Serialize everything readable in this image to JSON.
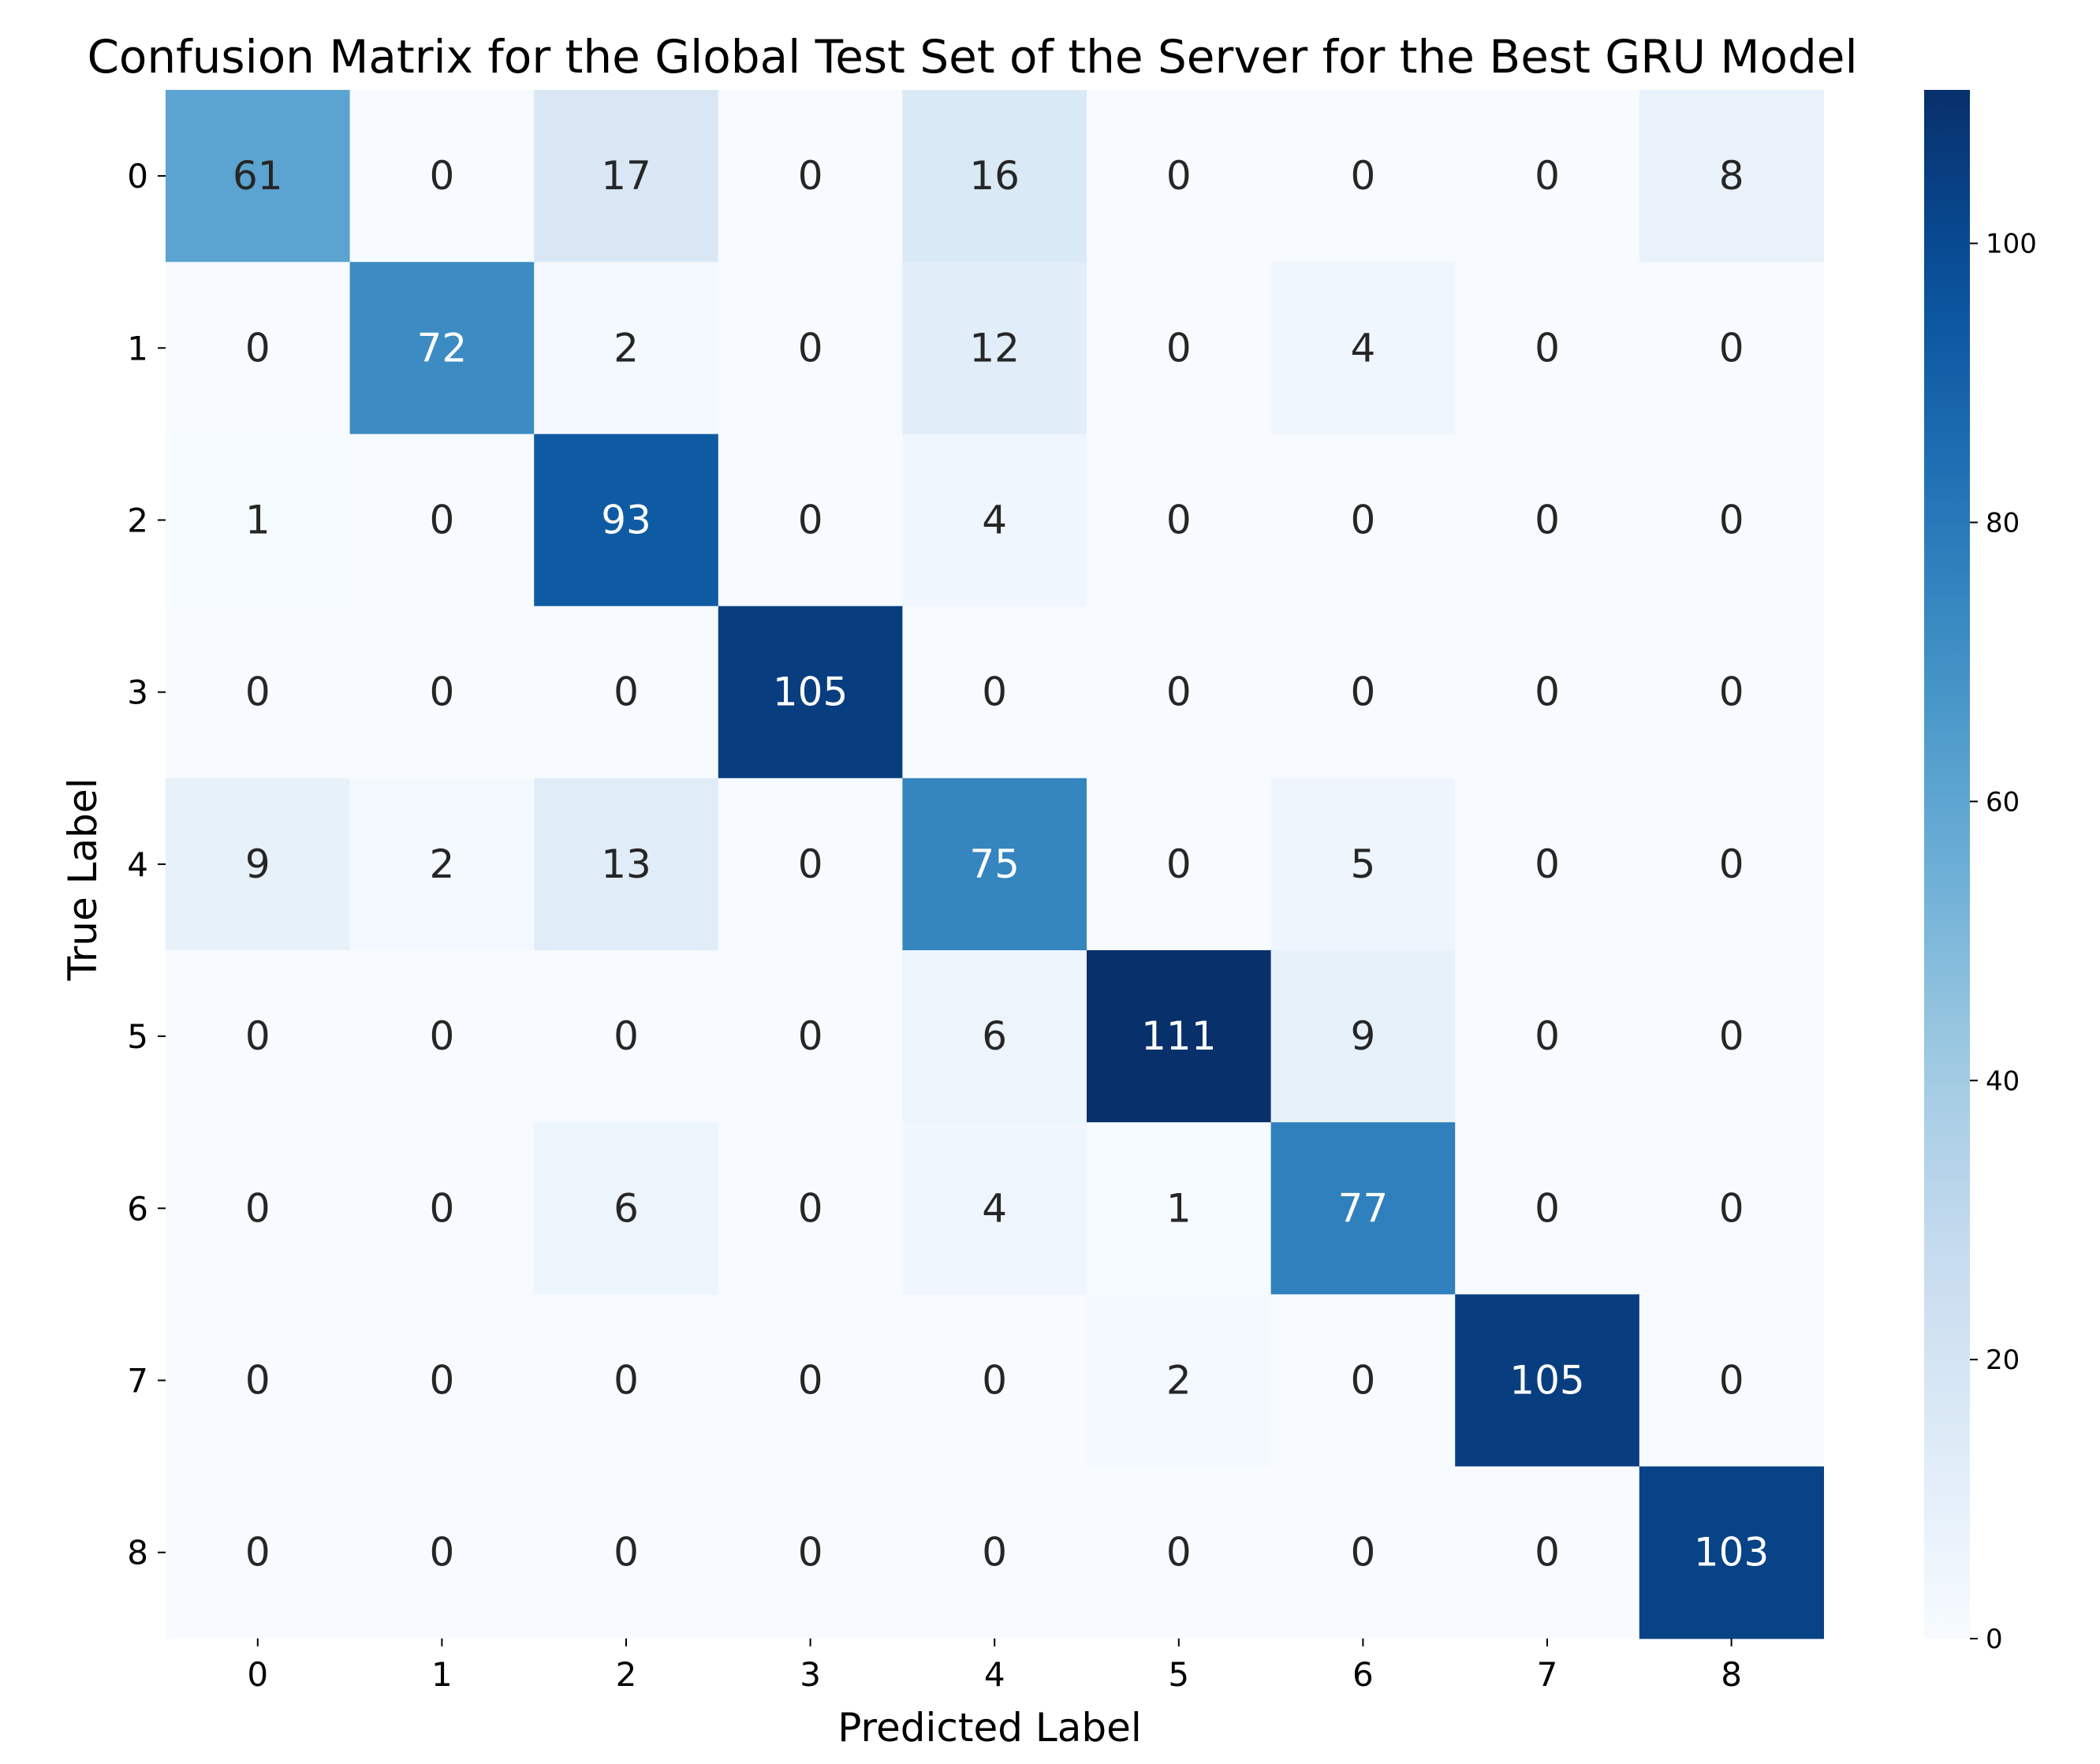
{
  "chart_data": {
    "type": "heatmap",
    "title": "Confusion Matrix for the Global Test Set of the Server for the Best GRU Model",
    "xlabel": "Predicted Label",
    "ylabel": "True Label",
    "x_categories": [
      "0",
      "1",
      "2",
      "3",
      "4",
      "5",
      "6",
      "7",
      "8"
    ],
    "y_categories": [
      "0",
      "1",
      "2",
      "3",
      "4",
      "5",
      "6",
      "7",
      "8"
    ],
    "values": [
      [
        61,
        0,
        17,
        0,
        16,
        0,
        0,
        0,
        8
      ],
      [
        0,
        72,
        2,
        0,
        12,
        0,
        4,
        0,
        0
      ],
      [
        1,
        0,
        93,
        0,
        4,
        0,
        0,
        0,
        0
      ],
      [
        0,
        0,
        0,
        105,
        0,
        0,
        0,
        0,
        0
      ],
      [
        9,
        2,
        13,
        0,
        75,
        0,
        5,
        0,
        0
      ],
      [
        0,
        0,
        0,
        0,
        6,
        111,
        9,
        0,
        0
      ],
      [
        0,
        0,
        6,
        0,
        4,
        1,
        77,
        0,
        0
      ],
      [
        0,
        0,
        0,
        0,
        0,
        2,
        0,
        105,
        0
      ],
      [
        0,
        0,
        0,
        0,
        0,
        0,
        0,
        0,
        103
      ]
    ],
    "colormap": "Blues",
    "colorbar": {
      "range": [
        0,
        111
      ],
      "ticks": [
        0,
        20,
        40,
        60,
        80,
        100
      ]
    }
  }
}
